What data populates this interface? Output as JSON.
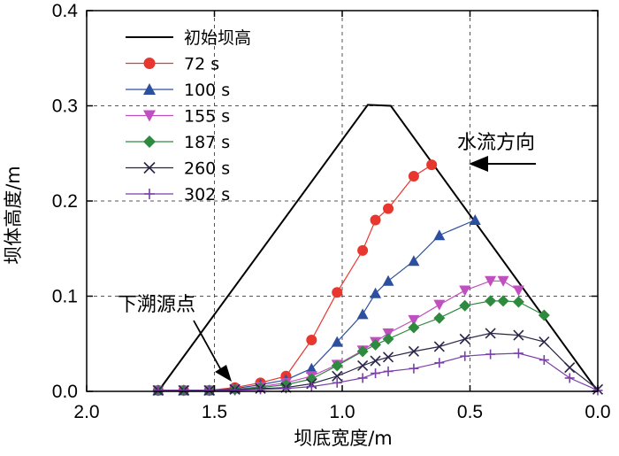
{
  "chart_data": {
    "type": "line",
    "title": "",
    "xlabel": "坝底宽度/m",
    "ylabel": "坝体高度/m",
    "xlim": [
      2.0,
      0.0
    ],
    "ylim": [
      0.0,
      0.4
    ],
    "x_reversed": true,
    "xticks": [
      "2.0",
      "1.5",
      "1.0",
      "0.5",
      "0.0"
    ],
    "xtick_values": [
      2.0,
      1.5,
      1.0,
      0.5,
      0.0
    ],
    "yticks": [
      "0.0",
      "0.1",
      "0.2",
      "0.3",
      "0.4"
    ],
    "ytick_values": [
      0.0,
      0.1,
      0.2,
      0.3,
      0.4
    ],
    "grid": "dashed at 0.5/1.0/1.5 (x) and 0.1/0.2/0.3 (y)",
    "legend_position": "top-left",
    "series": [
      {
        "name": "初始坝高",
        "color": "#000000",
        "marker": "none",
        "x": [
          1.72,
          0.9,
          0.81,
          0.0
        ],
        "y": [
          0.0,
          0.301,
          0.3,
          0.0
        ]
      },
      {
        "name": "72 s",
        "color": "#e8372f",
        "marker": "circle",
        "x": [
          1.72,
          1.62,
          1.52,
          1.42,
          1.32,
          1.22,
          1.12,
          1.02,
          0.92,
          0.87,
          0.82,
          0.72,
          0.65
        ],
        "y": [
          0.001,
          0.001,
          0.001,
          0.004,
          0.009,
          0.016,
          0.054,
          0.104,
          0.148,
          0.18,
          0.192,
          0.226,
          0.238
        ]
      },
      {
        "name": "100 s",
        "color": "#2d4fa0",
        "marker": "triangle-up",
        "x": [
          1.72,
          1.62,
          1.52,
          1.42,
          1.32,
          1.22,
          1.12,
          1.02,
          0.92,
          0.87,
          0.82,
          0.72,
          0.62,
          0.48
        ],
        "y": [
          0.001,
          0.001,
          0.001,
          0.003,
          0.007,
          0.012,
          0.024,
          0.052,
          0.081,
          0.103,
          0.116,
          0.137,
          0.164,
          0.18
        ]
      },
      {
        "name": "155 s",
        "color": "#c04fc0",
        "marker": "triangle-down",
        "x": [
          1.72,
          1.62,
          1.52,
          1.42,
          1.32,
          1.22,
          1.12,
          1.02,
          0.92,
          0.87,
          0.82,
          0.72,
          0.62,
          0.52,
          0.42,
          0.37,
          0.31
        ],
        "y": [
          0.001,
          0.001,
          0.001,
          0.002,
          0.005,
          0.009,
          0.016,
          0.028,
          0.043,
          0.052,
          0.061,
          0.075,
          0.091,
          0.106,
          0.116,
          0.116,
          0.106
        ]
      },
      {
        "name": "187 s",
        "color": "#2e8a3e",
        "marker": "diamond",
        "x": [
          1.72,
          1.62,
          1.52,
          1.42,
          1.32,
          1.22,
          1.12,
          1.02,
          0.92,
          0.87,
          0.82,
          0.72,
          0.62,
          0.52,
          0.42,
          0.37,
          0.31,
          0.21
        ],
        "y": [
          0.001,
          0.001,
          0.001,
          0.002,
          0.004,
          0.007,
          0.013,
          0.027,
          0.042,
          0.049,
          0.055,
          0.067,
          0.077,
          0.09,
          0.095,
          0.095,
          0.094,
          0.08
        ]
      },
      {
        "name": "260 s",
        "color": "#2a2447",
        "marker": "x",
        "x": [
          1.72,
          1.62,
          1.52,
          1.42,
          1.32,
          1.22,
          1.12,
          1.02,
          0.92,
          0.87,
          0.82,
          0.72,
          0.62,
          0.52,
          0.42,
          0.31,
          0.21,
          0.11,
          0.0
        ],
        "y": [
          0.001,
          0.001,
          0.001,
          0.002,
          0.003,
          0.004,
          0.008,
          0.016,
          0.027,
          0.032,
          0.036,
          0.042,
          0.047,
          0.055,
          0.061,
          0.059,
          0.052,
          0.025,
          0.002
        ]
      },
      {
        "name": "302 s",
        "color": "#7b3fa8",
        "marker": "plus",
        "x": [
          1.72,
          1.62,
          1.52,
          1.42,
          1.32,
          1.22,
          1.12,
          1.02,
          0.92,
          0.87,
          0.82,
          0.72,
          0.62,
          0.52,
          0.42,
          0.31,
          0.21,
          0.11,
          0.0
        ],
        "y": [
          0.001,
          0.001,
          0.001,
          0.001,
          0.002,
          0.003,
          0.005,
          0.009,
          0.014,
          0.019,
          0.021,
          0.024,
          0.03,
          0.037,
          0.039,
          0.04,
          0.033,
          0.014,
          0.001
        ]
      }
    ],
    "annotations": [
      {
        "text": "水流方向",
        "arrow": "pointing left",
        "near": "top-right"
      },
      {
        "text": "下溯源点",
        "arrow": "pointing down-right",
        "near": "bottom-left"
      }
    ]
  }
}
